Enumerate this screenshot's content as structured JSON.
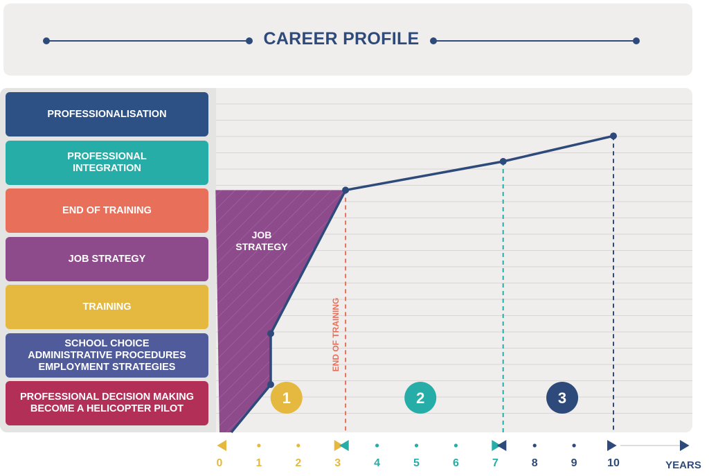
{
  "header": {
    "title": "CAREER PROFILE"
  },
  "stages": [
    {
      "label": "PROFESSIONALISATION",
      "color": "#2d5185"
    },
    {
      "label": "PROFESSIONAL\nINTEGRATION",
      "color": "#27ada7"
    },
    {
      "label": "END OF TRAINING",
      "color": "#e8705a"
    },
    {
      "label": "JOB STRATEGY",
      "color": "#8d4b8c"
    },
    {
      "label": "TRAINING",
      "color": "#e5b93f"
    },
    {
      "label": "SCHOOL CHOICE\nADMINISTRATIVE PROCEDURES\nEMPLOYMENT STRATEGIES",
      "color": "#505b9b"
    },
    {
      "label": "PROFESSIONAL DECISION MAKING\nBECOME A HELICOPTER PILOT",
      "color": "#b23058"
    }
  ],
  "chart_data": {
    "type": "line",
    "x_unit": "YEARS",
    "xlim": [
      0,
      10
    ],
    "x_ticks": [
      "0",
      "1",
      "2",
      "3",
      "4",
      "5",
      "6",
      "7",
      "8",
      "9",
      "10"
    ],
    "line": {
      "color": "#2d4a7a",
      "points": [
        {
          "x": 0.3,
          "y": 0.0
        },
        {
          "x": 1.3,
          "y": 1.5
        },
        {
          "x": 1.3,
          "y": 3.1
        },
        {
          "x": 3.2,
          "y": 7.6
        },
        {
          "x": 7.2,
          "y": 8.5
        },
        {
          "x": 10.0,
          "y": 9.3
        }
      ]
    },
    "shaded_area": {
      "label": "JOB\nSTRATEGY",
      "color": "#8d4b8c"
    },
    "markers": [
      {
        "x": 3.2,
        "y": 7.6,
        "label": "END OF TRAINING",
        "color": "#e8705a"
      },
      {
        "x": 7.2,
        "y": 8.5,
        "label": "",
        "color": "#27ada7"
      },
      {
        "x": 10.0,
        "y": 9.3,
        "label": "",
        "color": "#2d4a7a"
      }
    ],
    "phases": [
      {
        "label": "1",
        "center_x": 1.7,
        "color": "#e5b93f",
        "range": [
          0,
          3
        ],
        "tick_color": "#e5b93f"
      },
      {
        "label": "2",
        "center_x": 5.1,
        "color": "#27ada7",
        "range": [
          3,
          7
        ],
        "tick_color": "#27ada7"
      },
      {
        "label": "3",
        "center_x": 8.7,
        "color": "#2d4a7a",
        "range": [
          7,
          10
        ],
        "tick_color": "#2d4a7a"
      }
    ],
    "grid": true
  }
}
